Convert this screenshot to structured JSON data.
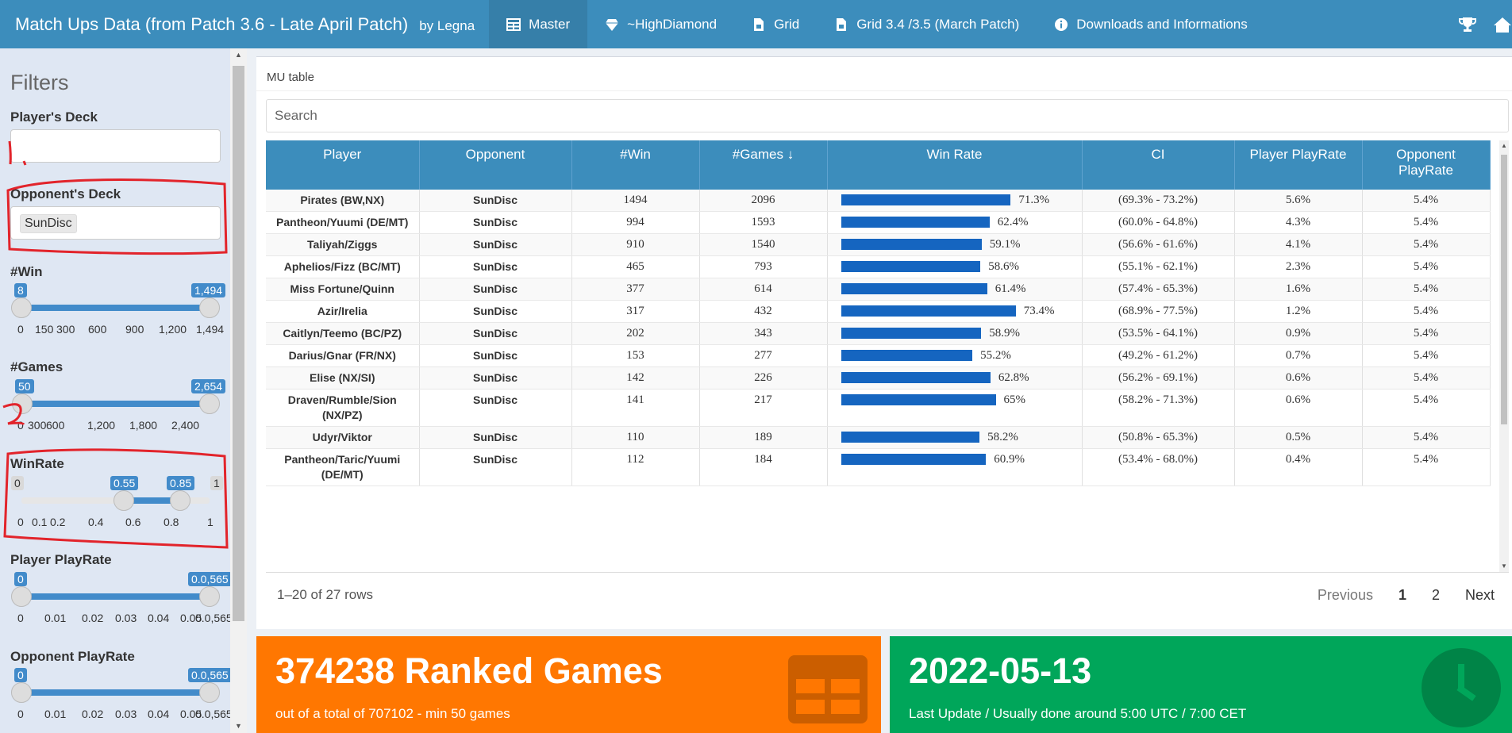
{
  "navbar": {
    "title": "Match Ups Data (from Patch 3.6 - Late April Patch)",
    "author": "by Legna",
    "items": [
      {
        "label": "Master",
        "icon": "table-icon",
        "active": true
      },
      {
        "label": "~HighDiamond",
        "icon": "diamond-icon",
        "active": false
      },
      {
        "label": "Grid",
        "icon": "file-icon",
        "active": false
      },
      {
        "label": "Grid 3.4 /3.5 (March Patch)",
        "icon": "file-icon",
        "active": false
      },
      {
        "label": "Downloads and Informations",
        "icon": "info-icon",
        "active": false
      }
    ],
    "right_icons": [
      "trophy-icon",
      "home-icon"
    ]
  },
  "sidebar": {
    "title": "Filters",
    "player_deck": {
      "label": "Player's Deck",
      "value": ""
    },
    "opponent_deck": {
      "label": "Opponent's Deck",
      "chip": "SunDisc"
    },
    "win": {
      "label": "#Win",
      "min": "8",
      "max": "1,494",
      "ticks": [
        "0",
        "150",
        "300",
        "600",
        "900",
        "1,200",
        "1,494"
      ]
    },
    "games": {
      "label": "#Games",
      "min": "50",
      "max": "2,654",
      "ticks": [
        "0",
        "300",
        "600",
        "1,200",
        "1,800",
        "2,400"
      ]
    },
    "winrate": {
      "label": "WinRate",
      "lo": "0",
      "hi": "1",
      "min": "0.55",
      "max": "0.85",
      "ticks": [
        "0",
        "0.1",
        "0.2",
        "0.4",
        "0.6",
        "0.8",
        "1"
      ]
    },
    "player_playrate": {
      "label": "Player PlayRate",
      "min": "0",
      "max": "0.0,565",
      "ticks": [
        "0",
        "0.01",
        "0.02",
        "0.03",
        "0.04",
        "0.05",
        "0.0,565"
      ]
    },
    "opponent_playrate": {
      "label": "Opponent PlayRate",
      "min": "0",
      "max": "0.0,565",
      "ticks": [
        "0",
        "0.01",
        "0.02",
        "0.03",
        "0.04",
        "0.05",
        "0.0,565"
      ]
    }
  },
  "main": {
    "box_title": "MU table",
    "search_placeholder": "Search",
    "columns": [
      "Player",
      "Opponent",
      "#Win",
      "#Games ↓",
      "Win Rate",
      "CI",
      "Player PlayRate",
      "Opponent PlayRate"
    ],
    "rows": [
      {
        "player": "Pirates (BW,NX)",
        "opponent": "SunDisc",
        "win": "1494",
        "games": "2096",
        "winrate": "71.3%",
        "wr": 71.3,
        "ci": "(69.3% - 73.2%)",
        "ppr": "5.6%",
        "opr": "5.4%"
      },
      {
        "player": "Pantheon/Yuumi (DE/MT)",
        "opponent": "SunDisc",
        "win": "994",
        "games": "1593",
        "winrate": "62.4%",
        "wr": 62.4,
        "ci": "(60.0% - 64.8%)",
        "ppr": "4.3%",
        "opr": "5.4%"
      },
      {
        "player": "Taliyah/Ziggs",
        "opponent": "SunDisc",
        "win": "910",
        "games": "1540",
        "winrate": "59.1%",
        "wr": 59.1,
        "ci": "(56.6% - 61.6%)",
        "ppr": "4.1%",
        "opr": "5.4%"
      },
      {
        "player": "Aphelios/Fizz (BC/MT)",
        "opponent": "SunDisc",
        "win": "465",
        "games": "793",
        "winrate": "58.6%",
        "wr": 58.6,
        "ci": "(55.1% - 62.1%)",
        "ppr": "2.3%",
        "opr": "5.4%"
      },
      {
        "player": "Miss Fortune/Quinn",
        "opponent": "SunDisc",
        "win": "377",
        "games": "614",
        "winrate": "61.4%",
        "wr": 61.4,
        "ci": "(57.4% - 65.3%)",
        "ppr": "1.6%",
        "opr": "5.4%"
      },
      {
        "player": "Azir/Irelia",
        "opponent": "SunDisc",
        "win": "317",
        "games": "432",
        "winrate": "73.4%",
        "wr": 73.4,
        "ci": "(68.9% - 77.5%)",
        "ppr": "1.2%",
        "opr": "5.4%"
      },
      {
        "player": "Caitlyn/Teemo (BC/PZ)",
        "opponent": "SunDisc",
        "win": "202",
        "games": "343",
        "winrate": "58.9%",
        "wr": 58.9,
        "ci": "(53.5% - 64.1%)",
        "ppr": "0.9%",
        "opr": "5.4%"
      },
      {
        "player": "Darius/Gnar (FR/NX)",
        "opponent": "SunDisc",
        "win": "153",
        "games": "277",
        "winrate": "55.2%",
        "wr": 55.2,
        "ci": "(49.2% - 61.2%)",
        "ppr": "0.7%",
        "opr": "5.4%"
      },
      {
        "player": "Elise (NX/SI)",
        "opponent": "SunDisc",
        "win": "142",
        "games": "226",
        "winrate": "62.8%",
        "wr": 62.8,
        "ci": "(56.2% - 69.1%)",
        "ppr": "0.6%",
        "opr": "5.4%"
      },
      {
        "player": "Draven/Rumble/Sion (NX/PZ)",
        "opponent": "SunDisc",
        "win": "141",
        "games": "217",
        "winrate": "65%",
        "wr": 65,
        "ci": "(58.2% - 71.3%)",
        "ppr": "0.6%",
        "opr": "5.4%"
      },
      {
        "player": "Udyr/Viktor",
        "opponent": "SunDisc",
        "win": "110",
        "games": "189",
        "winrate": "58.2%",
        "wr": 58.2,
        "ci": "(50.8% - 65.3%)",
        "ppr": "0.5%",
        "opr": "5.4%"
      },
      {
        "player": "Pantheon/Taric/Yuumi (DE/MT)",
        "opponent": "SunDisc",
        "win": "112",
        "games": "184",
        "winrate": "60.9%",
        "wr": 60.9,
        "ci": "(53.4% - 68.0%)",
        "ppr": "0.4%",
        "opr": "5.4%"
      }
    ],
    "rows_info": "1–20 of 27 rows",
    "pager": {
      "prev": "Previous",
      "pages": [
        "1",
        "2"
      ],
      "next": "Next"
    }
  },
  "info_boxes": {
    "games": {
      "value": "374238 Ranked Games",
      "subtitle": "out of a total of 707102 - min 50 games",
      "icon": "table-icon",
      "color": "#ff7701"
    },
    "update": {
      "value": "2022-05-13",
      "subtitle": "Last Update / Usually done around 5:00 UTC / 7:00 CET",
      "icon": "clock-icon",
      "color": "#00a65a"
    }
  }
}
